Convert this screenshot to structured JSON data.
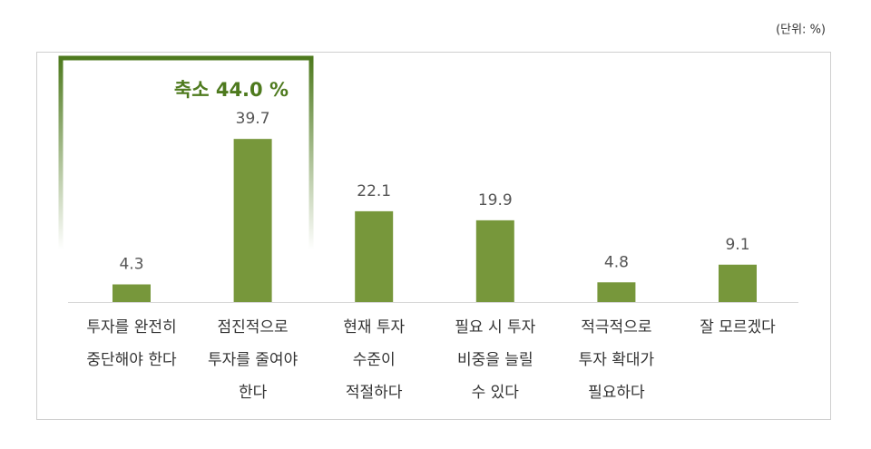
{
  "chart_data": {
    "type": "bar",
    "unit_note": "(단위: %)",
    "annotation": "축소 44.0 %",
    "categories": [
      "투자를 완전히\n중단해야 한다",
      "점진적으로\n투자를 줄여야\n한다",
      "현재 투자\n수준이\n적절하다",
      "필요 시 투자\n비중을 늘릴\n수 있다",
      "적극적으로\n투자 확대가\n필요하다",
      "잘 모르겠다"
    ],
    "values": [
      4.3,
      39.7,
      22.1,
      19.9,
      4.8,
      9.1
    ],
    "color": "#77973b"
  }
}
